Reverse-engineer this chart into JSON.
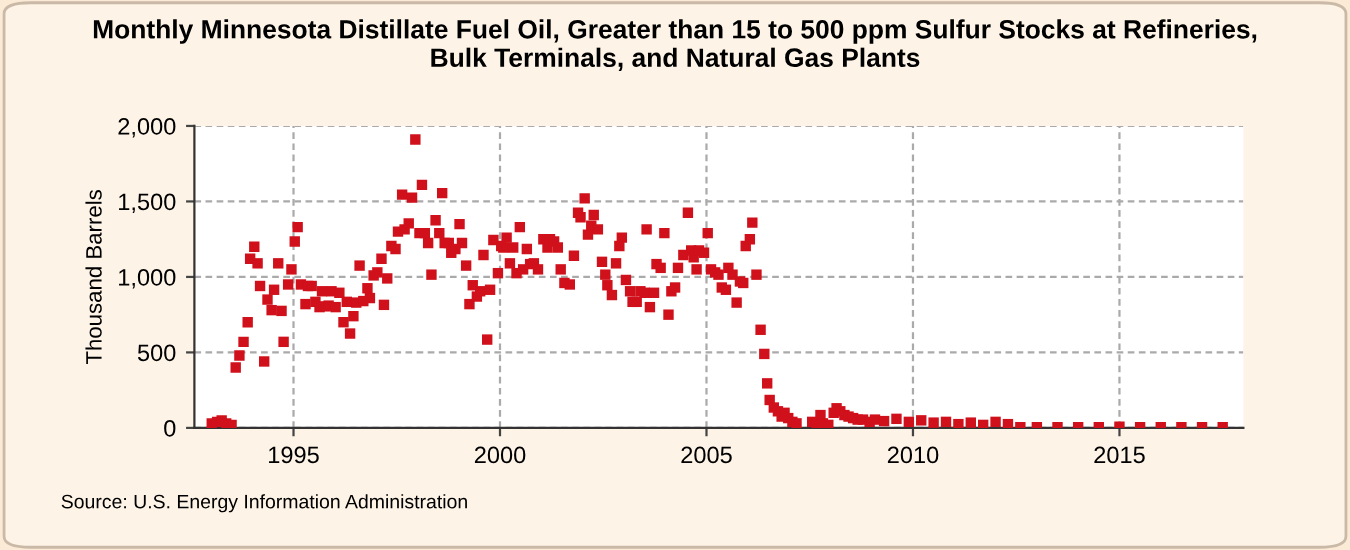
{
  "chart_data": {
    "type": "scatter",
    "title": "Monthly Minnesota Distillate Fuel Oil, Greater than 15 to 500 ppm Sulfur Stocks at Refineries,\nBulk Terminals, and Natural Gas Plants",
    "ylabel": "Thousand Barrels",
    "annotations": [
      "Source: U.S. Energy Information Administration"
    ],
    "marker": "square",
    "grid": true,
    "legend": false,
    "xlim": [
      1992.6,
      2018.0
    ],
    "xticks": [
      1995,
      2000,
      2005,
      2010,
      2015
    ],
    "ylim": [
      0,
      2000
    ],
    "yticks": [
      0,
      {
        "value": 500,
        "label": "500"
      },
      {
        "value": 1000,
        "label": "1,000"
      },
      {
        "value": 1500,
        "label": "1,500"
      },
      {
        "value": 2000,
        "label": "2,000"
      }
    ],
    "series": [
      {
        "color": "#d0101b",
        "x": [
          1993.02,
          1993.15,
          1993.26,
          1993.37,
          1993.5,
          1993.6,
          1993.69,
          1993.79,
          1993.89,
          1993.95,
          1994.05,
          1994.13,
          1994.19,
          1994.29,
          1994.37,
          1994.47,
          1994.53,
          1994.63,
          1994.71,
          1994.76,
          1994.87,
          1994.95,
          1995.03,
          1995.1,
          1995.18,
          1995.29,
          1995.35,
          1995.44,
          1995.53,
          1995.63,
          1995.69,
          1995.77,
          1995.85,
          1995.92,
          1996.02,
          1996.11,
          1996.21,
          1996.29,
          1996.37,
          1996.45,
          1996.52,
          1996.6,
          1996.69,
          1996.79,
          1996.85,
          1996.94,
          1997.03,
          1997.13,
          1997.19,
          1997.27,
          1997.37,
          1997.47,
          1997.53,
          1997.63,
          1997.69,
          1997.79,
          1997.87,
          1997.95,
          1998.05,
          1998.11,
          1998.18,
          1998.26,
          1998.34,
          1998.44,
          1998.53,
          1998.6,
          1998.66,
          1998.76,
          1998.82,
          1998.92,
          1999.02,
          1999.08,
          1999.18,
          1999.26,
          1999.34,
          1999.44,
          1999.52,
          1999.6,
          1999.69,
          1999.76,
          1999.84,
          1999.95,
          2000.03,
          2000.08,
          2000.16,
          2000.24,
          2000.32,
          2000.4,
          2000.48,
          2000.56,
          2000.65,
          2000.73,
          2000.82,
          2000.92,
          2001.05,
          2001.15,
          2001.21,
          2001.31,
          2001.4,
          2001.47,
          2001.56,
          2001.69,
          2001.79,
          2001.89,
          2001.95,
          2002.05,
          2002.13,
          2002.21,
          2002.27,
          2002.37,
          2002.47,
          2002.55,
          2002.6,
          2002.71,
          2002.81,
          2002.89,
          2002.95,
          2003.05,
          2003.15,
          2003.21,
          2003.31,
          2003.4,
          2003.5,
          2003.55,
          2003.63,
          2003.73,
          2003.79,
          2003.89,
          2003.98,
          2004.08,
          2004.15,
          2004.24,
          2004.31,
          2004.44,
          2004.55,
          2004.63,
          2004.69,
          2004.76,
          2004.82,
          2004.94,
          2005.03,
          2005.11,
          2005.21,
          2005.29,
          2005.37,
          2005.47,
          2005.53,
          2005.63,
          2005.73,
          2005.81,
          2005.89,
          2005.95,
          2006.05,
          2006.11,
          2006.21,
          2006.31,
          2006.4,
          2006.47,
          2006.53,
          2006.63,
          2006.73,
          2006.82,
          2006.89,
          2006.98,
          2007.08,
          2007.18,
          2007.56,
          2007.66,
          2007.76,
          2007.82,
          2007.95,
          2008.08,
          2008.15,
          2008.24,
          2008.34,
          2008.44,
          2008.55,
          2008.66,
          2008.79,
          2008.95,
          2009.08,
          2009.3,
          2009.6,
          2009.9,
          2010.2,
          2010.5,
          2010.8,
          2011.1,
          2011.4,
          2011.7,
          2012.0,
          2012.3,
          2012.6,
          2013.0,
          2013.5,
          2014.0,
          2014.5,
          2015.0,
          2015.5,
          2016.0,
          2016.5,
          2017.0,
          2017.5
        ],
        "values": [
          30,
          40,
          50,
          30,
          20,
          400,
          480,
          570,
          700,
          1120,
          1200,
          1090,
          940,
          440,
          850,
          780,
          915,
          1090,
          775,
          570,
          950,
          1050,
          1235,
          1330,
          950,
          820,
          940,
          940,
          835,
          800,
          905,
          805,
          810,
          905,
          800,
          895,
          700,
          835,
          625,
          740,
          830,
          1075,
          840,
          925,
          860,
          1010,
          1030,
          1120,
          815,
          990,
          1205,
          1185,
          1300,
          1545,
          1315,
          1355,
          1525,
          1910,
          1290,
          1610,
          1290,
          1225,
          1015,
          1375,
          1290,
          1555,
          1225,
          1225,
          1160,
          1185,
          1350,
          1225,
          1075,
          820,
          945,
          870,
          905,
          1145,
          585,
          915,
          1245,
          1025,
          1205,
          1195,
          1260,
          1090,
          1195,
          1025,
          1330,
          1050,
          1185,
          1085,
          1090,
          1050,
          1250,
          1195,
          1250,
          1235,
          1195,
          1050,
          960,
          950,
          1140,
          1425,
          1395,
          1520,
          1280,
          1340,
          1410,
          1315,
          1100,
          1015,
          945,
          880,
          1090,
          1205,
          1260,
          980,
          905,
          835,
          835,
          905,
          895,
          1315,
          800,
          895,
          1085,
          1060,
          1290,
          750,
          905,
          930,
          1060,
          1145,
          1425,
          1175,
          1130,
          1050,
          1175,
          1160,
          1290,
          1050,
          1030,
          1015,
          930,
          915,
          1060,
          1015,
          830,
          970,
          960,
          1205,
          1250,
          1360,
          1015,
          650,
          490,
          295,
          185,
          135,
          110,
          75,
          100,
          65,
          40,
          30,
          40,
          30,
          85,
          30,
          20,
          100,
          130,
          110,
          85,
          75,
          65,
          55,
          55,
          40,
          55,
          45,
          60,
          40,
          50,
          35,
          40,
          25,
          35,
          20,
          40,
          25,
          5,
          5,
          5,
          5,
          5,
          8,
          5,
          5,
          5,
          5,
          5
        ]
      }
    ]
  }
}
